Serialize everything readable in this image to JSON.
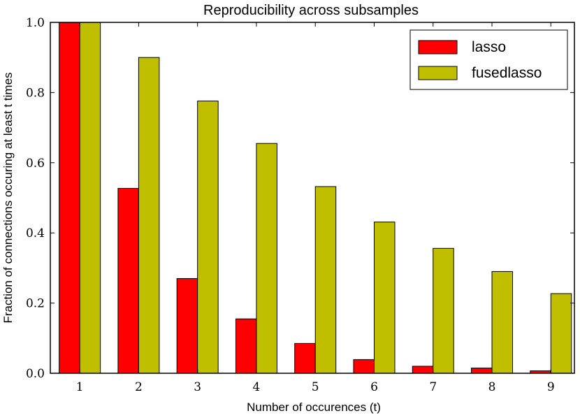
{
  "chart_data": {
    "type": "bar",
    "title": "Reproducibility across subsamples",
    "xlabel": "Number of occurences (t)",
    "ylabel": "Fraction of connections occuring at least t times",
    "categories": [
      "1",
      "2",
      "3",
      "4",
      "5",
      "6",
      "7",
      "8",
      "9"
    ],
    "series": [
      {
        "name": "lasso",
        "color": "#ff0000",
        "values": [
          1.0,
          0.527,
          0.27,
          0.155,
          0.085,
          0.039,
          0.02,
          0.015,
          0.007
        ]
      },
      {
        "name": "fusedlasso",
        "color": "#bfbf00",
        "values": [
          1.0,
          0.9,
          0.776,
          0.655,
          0.532,
          0.431,
          0.356,
          0.29,
          0.227
        ]
      }
    ],
    "ylim": [
      0.0,
      1.0
    ],
    "yticks": [
      "0.0",
      "0.2",
      "0.4",
      "0.6",
      "0.8",
      "1.0"
    ],
    "legend_position": "top-right"
  }
}
